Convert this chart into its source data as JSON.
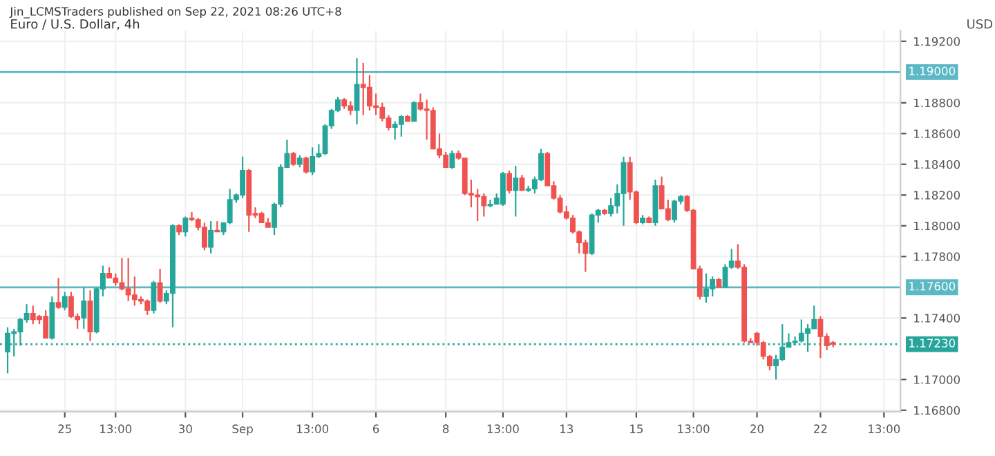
{
  "chart_data": {
    "type": "candlestick",
    "title": "Euro / U.S. Dollar, 4h",
    "ylabel": "USD",
    "annotations": [
      "Jin_LCMSTraders published on Sep 22, 2021 08:26 UTC+8"
    ],
    "categories": [
      null,
      null,
      null,
      null,
      null,
      null,
      null,
      null,
      null,
      "25",
      null,
      null,
      null,
      null,
      null,
      null,
      null,
      "13:00",
      null,
      null,
      null,
      null,
      null,
      null,
      null,
      null,
      null,
      null,
      "30",
      null,
      null,
      null,
      null,
      null,
      null,
      null,
      null,
      "Sep",
      null,
      null,
      null,
      null,
      null,
      null,
      null,
      null,
      null,
      null,
      "13:00",
      null,
      null,
      null,
      null,
      null,
      null,
      null,
      null,
      null,
      "6",
      null,
      null,
      null,
      null,
      null,
      null,
      null,
      null,
      null,
      null,
      "8",
      null,
      null,
      null,
      null,
      null,
      null,
      null,
      null,
      "13:00",
      null,
      null,
      null,
      null,
      null,
      null,
      null,
      null,
      null,
      "13",
      null,
      null,
      null,
      null,
      null,
      null,
      null,
      null,
      null,
      null,
      "15",
      null,
      null,
      null,
      null,
      null,
      null,
      null,
      null,
      "13:00",
      null,
      null,
      null,
      null,
      null,
      null,
      null,
      null,
      null,
      "20",
      null,
      null,
      null,
      null,
      null,
      null,
      null,
      null,
      null,
      "22",
      null,
      null,
      null,
      null,
      null,
      null,
      null,
      null,
      null,
      "13:00",
      null,
      null
    ],
    "ohlc": [
      [
        1.1718,
        1.1734,
        1.1704,
        1.173
      ],
      [
        1.173,
        1.1733,
        1.1715,
        1.1731
      ],
      [
        1.1731,
        1.174,
        1.1722,
        1.1739
      ],
      [
        1.1739,
        1.1749,
        1.1737,
        1.1743
      ],
      [
        1.1743,
        1.1748,
        1.1736,
        1.1739
      ],
      [
        1.1741,
        1.1742,
        1.1736,
        1.1739
      ],
      [
        1.1741,
        1.1745,
        1.1727,
        1.1727
      ],
      [
        1.1727,
        1.1754,
        1.1726,
        1.175
      ],
      [
        1.175,
        1.1766,
        1.1746,
        1.1747
      ],
      [
        1.1747,
        1.1757,
        1.1745,
        1.1754
      ],
      [
        1.1754,
        1.1757,
        1.174,
        1.1741
      ],
      [
        1.1741,
        1.1743,
        1.1733,
        1.1739
      ],
      [
        1.174,
        1.176,
        1.1733,
        1.1751
      ],
      [
        1.1751,
        1.1758,
        1.1725,
        1.1731
      ],
      [
        1.1731,
        1.176,
        1.173,
        1.1759
      ],
      [
        1.1759,
        1.1774,
        1.1754,
        1.1769
      ],
      [
        1.1769,
        1.1773,
        1.1766,
        1.1766
      ],
      [
        1.1766,
        1.1769,
        1.1761,
        1.1763
      ],
      [
        1.1763,
        1.1779,
        1.1758,
        1.1759
      ],
      [
        1.1759,
        1.1779,
        1.1751,
        1.1755
      ],
      [
        1.1755,
        1.1767,
        1.1748,
        1.1752
      ],
      [
        1.1752,
        1.1754,
        1.1749,
        1.1751
      ],
      [
        1.1751,
        1.1752,
        1.1742,
        1.1745
      ],
      [
        1.1745,
        1.1764,
        1.1743,
        1.1763
      ],
      [
        1.1763,
        1.1772,
        1.175,
        1.1751
      ],
      [
        1.1751,
        1.1758,
        1.1749,
        1.1756
      ],
      [
        1.1756,
        1.1801,
        1.1734,
        1.18
      ],
      [
        1.18,
        1.1801,
        1.1794,
        1.1796
      ],
      [
        1.1796,
        1.1806,
        1.1793,
        1.1805
      ],
      [
        1.1805,
        1.1809,
        1.1803,
        1.1804
      ],
      [
        1.1804,
        1.1805,
        1.1797,
        1.1799
      ],
      [
        1.1799,
        1.1802,
        1.1784,
        1.1786
      ],
      [
        1.1786,
        1.1803,
        1.1782,
        1.1797
      ],
      [
        1.1797,
        1.1803,
        1.1796,
        1.1796
      ],
      [
        1.1796,
        1.1802,
        1.1794,
        1.1802
      ],
      [
        1.1802,
        1.1824,
        1.1801,
        1.1817
      ],
      [
        1.1817,
        1.1821,
        1.1815,
        1.182
      ],
      [
        1.182,
        1.1845,
        1.1818,
        1.1836
      ],
      [
        1.1836,
        1.1837,
        1.1796,
        1.1807
      ],
      [
        1.1808,
        1.1812,
        1.1805,
        1.1807
      ],
      [
        1.1808,
        1.1809,
        1.1802,
        1.1802
      ],
      [
        1.1802,
        1.1805,
        1.1799,
        1.1799
      ],
      [
        1.1799,
        1.1815,
        1.1794,
        1.1814
      ],
      [
        1.1814,
        1.184,
        1.1812,
        1.1838
      ],
      [
        1.1838,
        1.1856,
        1.1838,
        1.1847
      ],
      [
        1.1847,
        1.1848,
        1.1839,
        1.184
      ],
      [
        1.184,
        1.1846,
        1.1838,
        1.1844
      ],
      [
        1.1844,
        1.1845,
        1.1834,
        1.1835
      ],
      [
        1.1835,
        1.1851,
        1.1833,
        1.1845
      ],
      [
        1.1845,
        1.1853,
        1.1844,
        1.1847
      ],
      [
        1.1847,
        1.1866,
        1.1846,
        1.1865
      ],
      [
        1.1865,
        1.1876,
        1.1863,
        1.1875
      ],
      [
        1.1875,
        1.1884,
        1.1874,
        1.1882
      ],
      [
        1.1882,
        1.1883,
        1.1876,
        1.1878
      ],
      [
        1.1878,
        1.1881,
        1.1872,
        1.1875
      ],
      [
        1.1875,
        1.1909,
        1.1866,
        1.1892
      ],
      [
        1.1892,
        1.1906,
        1.1872,
        1.189
      ],
      [
        1.189,
        1.1898,
        1.1875,
        1.1878
      ],
      [
        1.1878,
        1.1886,
        1.1872,
        1.1877
      ],
      [
        1.1877,
        1.188,
        1.1868,
        1.187
      ],
      [
        1.187,
        1.1872,
        1.1862,
        1.1864
      ],
      [
        1.1864,
        1.1868,
        1.1856,
        1.1866
      ],
      [
        1.1866,
        1.1872,
        1.1858,
        1.1871
      ],
      [
        1.1871,
        1.1872,
        1.1868,
        1.1868
      ],
      [
        1.1868,
        1.1881,
        1.1868,
        1.188
      ],
      [
        1.188,
        1.1886,
        1.1875,
        1.1876
      ],
      [
        1.1876,
        1.1882,
        1.1856,
        1.1875
      ],
      [
        1.1875,
        1.1877,
        1.185,
        1.185
      ],
      [
        1.185,
        1.186,
        1.1844,
        1.1846
      ],
      [
        1.1846,
        1.1848,
        1.1838,
        1.1838
      ],
      [
        1.1838,
        1.1849,
        1.1837,
        1.1847
      ],
      [
        1.1847,
        1.1849,
        1.1843,
        1.1844
      ],
      [
        1.1844,
        1.1844,
        1.182,
        1.1821
      ],
      [
        1.1821,
        1.183,
        1.1812,
        1.182
      ],
      [
        1.182,
        1.1824,
        1.1803,
        1.1819
      ],
      [
        1.1819,
        1.1821,
        1.1806,
        1.1813
      ],
      [
        1.1813,
        1.1817,
        1.1812,
        1.1814
      ],
      [
        1.1814,
        1.1821,
        1.1814,
        1.1818
      ],
      [
        1.1814,
        1.1835,
        1.1813,
        1.1834
      ],
      [
        1.1834,
        1.1836,
        1.1821,
        1.1823
      ],
      [
        1.1823,
        1.1839,
        1.1806,
        1.1831
      ],
      [
        1.1831,
        1.1833,
        1.1823,
        1.1823
      ],
      [
        1.1823,
        1.1826,
        1.1822,
        1.1824
      ],
      [
        1.1824,
        1.1832,
        1.1821,
        1.183
      ],
      [
        1.183,
        1.185,
        1.1829,
        1.1847
      ],
      [
        1.1847,
        1.1848,
        1.1826,
        1.1826
      ],
      [
        1.1826,
        1.1829,
        1.1817,
        1.1818
      ],
      [
        1.1818,
        1.182,
        1.1808,
        1.1809
      ],
      [
        1.1809,
        1.1813,
        1.1804,
        1.1805
      ],
      [
        1.1805,
        1.1807,
        1.1795,
        1.1796
      ],
      [
        1.1796,
        1.1797,
        1.1782,
        1.1789
      ],
      [
        1.1789,
        1.1791,
        1.177,
        1.1782
      ],
      [
        1.1782,
        1.1808,
        1.1781,
        1.1807
      ],
      [
        1.1807,
        1.1811,
        1.1802,
        1.181
      ],
      [
        1.181,
        1.1811,
        1.1807,
        1.1808
      ],
      [
        1.1808,
        1.1818,
        1.1806,
        1.1813
      ],
      [
        1.1813,
        1.1827,
        1.1808,
        1.1821
      ],
      [
        1.1821,
        1.1845,
        1.18,
        1.1841
      ],
      [
        1.1841,
        1.1845,
        1.1817,
        1.1822
      ],
      [
        1.1822,
        1.1823,
        1.1801,
        1.1802
      ],
      [
        1.1802,
        1.1807,
        1.1801,
        1.1805
      ],
      [
        1.1805,
        1.1806,
        1.1802,
        1.1802
      ],
      [
        1.1802,
        1.183,
        1.18,
        1.1826
      ],
      [
        1.1826,
        1.1832,
        1.1811,
        1.1811
      ],
      [
        1.1811,
        1.1817,
        1.1803,
        1.1804
      ],
      [
        1.1804,
        1.1817,
        1.1802,
        1.1816
      ],
      [
        1.1816,
        1.182,
        1.1814,
        1.1819
      ],
      [
        1.1819,
        1.182,
        1.1809,
        1.181
      ],
      [
        1.181,
        1.1811,
        1.1772,
        1.1772
      ],
      [
        1.1772,
        1.1774,
        1.1752,
        1.1754
      ],
      [
        1.1754,
        1.1769,
        1.175,
        1.1759
      ],
      [
        1.1759,
        1.1767,
        1.1754,
        1.1765
      ],
      [
        1.1765,
        1.1766,
        1.176,
        1.176
      ],
      [
        1.176,
        1.1775,
        1.176,
        1.1773
      ],
      [
        1.1773,
        1.1785,
        1.1772,
        1.1777
      ],
      [
        1.1777,
        1.1788,
        1.1772,
        1.1773
      ],
      [
        1.1773,
        1.1775,
        1.1724,
        1.1725
      ],
      [
        1.1725,
        1.1727,
        1.1724,
        1.1724
      ],
      [
        1.173,
        1.1731,
        1.1722,
        1.1724
      ],
      [
        1.1724,
        1.1725,
        1.1713,
        1.1715
      ],
      [
        1.1715,
        1.1716,
        1.1706,
        1.1709
      ],
      [
        1.1709,
        1.1716,
        1.17,
        1.1713
      ],
      [
        1.1713,
        1.1736,
        1.1712,
        1.1721
      ],
      [
        1.1721,
        1.173,
        1.1721,
        1.1724
      ],
      [
        1.1724,
        1.1728,
        1.1722,
        1.1725
      ],
      [
        1.1725,
        1.1739,
        1.1724,
        1.173
      ],
      [
        1.173,
        1.1736,
        1.1718,
        1.1733
      ],
      [
        1.1733,
        1.1748,
        1.1733,
        1.1739
      ],
      [
        1.1739,
        1.1741,
        1.1714,
        1.1728
      ],
      [
        1.1728,
        1.173,
        1.1719,
        1.1722
      ],
      [
        1.1724,
        1.1725,
        1.1721,
        1.1723
      ],
      null,
      null,
      null,
      null,
      null,
      null,
      null,
      null,
      null,
      null
    ],
    "colors": [
      "#26a69a",
      "#26a69a",
      "#26a69a",
      "#26a69a",
      "#ef5350",
      "#ef5350",
      "#ef5350",
      "#26a69a",
      "#ef5350",
      "#26a69a",
      "#ef5350",
      "#ef5350",
      "#26a69a",
      "#ef5350",
      "#26a69a",
      "#26a69a",
      "#ef5350",
      "#ef5350",
      "#ef5350",
      "#ef5350",
      "#ef5350",
      "#ef5350",
      "#ef5350",
      "#26a69a",
      "#ef5350",
      "#26a69a",
      "#26a69a",
      "#ef5350",
      "#26a69a",
      "#ef5350",
      "#ef5350",
      "#ef5350",
      "#26a69a",
      "#ef5350",
      "#26a69a",
      "#26a69a",
      "#26a69a",
      "#26a69a",
      "#ef5350",
      "#ef5350",
      "#ef5350",
      "#ef5350",
      "#26a69a",
      "#26a69a",
      "#26a69a",
      "#ef5350",
      "#26a69a",
      "#ef5350",
      "#26a69a",
      "#26a69a",
      "#26a69a",
      "#26a69a",
      "#26a69a",
      "#ef5350",
      "#ef5350",
      "#26a69a",
      "#ef5350",
      "#ef5350",
      "#ef5350",
      "#ef5350",
      "#ef5350",
      "#26a69a",
      "#26a69a",
      "#ef5350",
      "#26a69a",
      "#ef5350",
      "#ef5350",
      "#ef5350",
      "#ef5350",
      "#ef5350",
      "#26a69a",
      "#ef5350",
      "#ef5350",
      "#ef5350",
      "#ef5350",
      "#ef5350",
      "#26a69a",
      "#26a69a",
      "#26a69a",
      "#ef5350",
      "#26a69a",
      "#ef5350",
      "#26a69a",
      "#26a69a",
      "#26a69a",
      "#ef5350",
      "#ef5350",
      "#ef5350",
      "#ef5350",
      "#ef5350",
      "#ef5350",
      "#ef5350",
      "#26a69a",
      "#26a69a",
      "#ef5350",
      "#26a69a",
      "#26a69a",
      "#26a69a",
      "#ef5350",
      "#ef5350",
      "#26a69a",
      "#ef5350",
      "#26a69a",
      "#ef5350",
      "#ef5350",
      "#26a69a",
      "#26a69a",
      "#ef5350",
      "#ef5350",
      "#ef5350",
      "#26a69a",
      "#26a69a",
      "#ef5350",
      "#26a69a",
      "#26a69a",
      "#ef5350",
      "#ef5350",
      "#ef5350",
      "#ef5350",
      "#ef5350",
      "#ef5350",
      "#26a69a",
      "#26a69a",
      "#26a69a",
      "#26a69a",
      "#26a69a",
      "#26a69a",
      "#26a69a",
      "#ef5350",
      "#ef5350",
      "#ef5350",
      null,
      null,
      null,
      null,
      null,
      null,
      null,
      null,
      null,
      null
    ],
    "ylim": [
      1.1679,
      1.1927
    ],
    "yticks": [
      {
        "value": 1.168,
        "label": "1.16800"
      },
      {
        "value": 1.17,
        "label": "1.17000"
      },
      {
        "value": 1.174,
        "label": "1.17400"
      },
      {
        "value": 1.178,
        "label": "1.17800"
      },
      {
        "value": 1.18,
        "label": "1.18000"
      },
      {
        "value": 1.182,
        "label": "1.18200"
      },
      {
        "value": 1.184,
        "label": "1.18400"
      },
      {
        "value": 1.186,
        "label": "1.18600"
      },
      {
        "value": 1.188,
        "label": "1.18800"
      },
      {
        "value": 1.192,
        "label": "1.19200"
      }
    ],
    "ref_lines": [
      {
        "axis": "y",
        "value": 1.19,
        "label": "1.19000",
        "color": "#5bb8c4",
        "line_style": "solid"
      },
      {
        "axis": "y",
        "value": 1.176,
        "label": "1.17600",
        "color": "#5bb8c4",
        "line_style": "solid"
      },
      {
        "axis": "y",
        "value": 1.1723,
        "label": "1.17230",
        "color": "#26a69a",
        "line_style": "dotted"
      }
    ],
    "grid": true
  }
}
